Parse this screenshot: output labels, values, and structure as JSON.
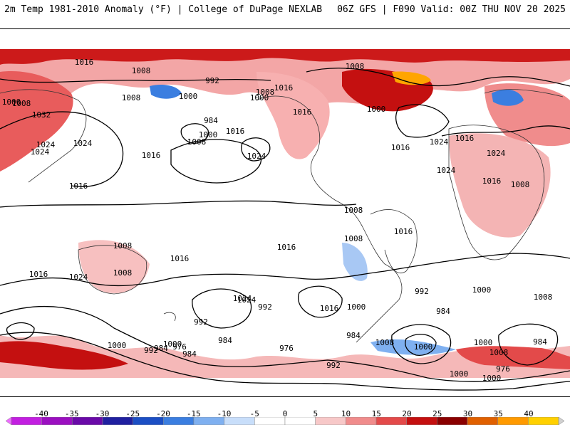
{
  "header": {
    "title_left": "2m Temp 1981-2010 Anomaly (°F) | College of DuPage NEXLAB",
    "title_right": "06Z GFS | F090 Valid: 00Z THU NOV 20 2025"
  },
  "map": {
    "contour_labels": [
      "1016",
      "1008",
      "992",
      "1000",
      "1008",
      "1016",
      "1000",
      "1032",
      "1024",
      "1024",
      "1008",
      "984",
      "1000",
      "1008",
      "1016",
      "1024",
      "1016",
      "1024",
      "1000",
      "1008",
      "1008",
      "1016",
      "1000",
      "1024",
      "1024",
      "1016",
      "1024",
      "1016",
      "1008",
      "1016",
      "1016",
      "1008",
      "1008",
      "1016",
      "1016",
      "1016",
      "1008",
      "1016",
      "1024",
      "1008",
      "1024",
      "1016",
      "1000",
      "992",
      "1000",
      "1024",
      "992",
      "984",
      "984",
      "976",
      "992",
      "1000",
      "984",
      "976",
      "984",
      "1000",
      "984",
      "992",
      "1000",
      "1000",
      "1008",
      "1008",
      "992",
      "1000",
      "976",
      "1000",
      "1008",
      "984"
    ]
  },
  "colorbar": {
    "ticks": [
      "-40",
      "-35",
      "-30",
      "-25",
      "-20",
      "-15",
      "-10",
      "-5",
      "0",
      "5",
      "10",
      "15",
      "20",
      "25",
      "30",
      "35",
      "40"
    ],
    "colors": [
      "#ee6cff",
      "#c21fe0",
      "#9b10c0",
      "#6a0aa8",
      "#2020a0",
      "#1c4fc4",
      "#3b7ee0",
      "#7fb0f0",
      "#c8defa",
      "#ffffff",
      "#ffffff",
      "#f7c8c8",
      "#f08c8c",
      "#e34a4a",
      "#c41010",
      "#8a0000",
      "#e06000",
      "#ff9a00",
      "#ffd000",
      "#d0d0d0"
    ]
  }
}
